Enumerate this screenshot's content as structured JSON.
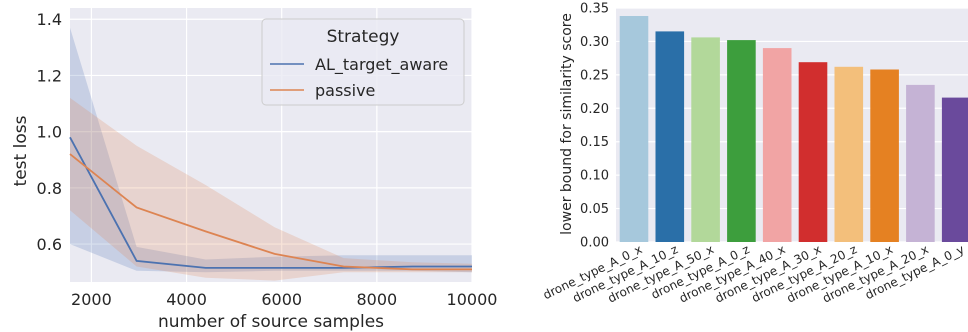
{
  "chart_data": [
    {
      "type": "line",
      "title": "",
      "xlabel": "number of source samples",
      "ylabel": "test loss",
      "xlim": [
        1550,
        10000
      ],
      "ylim": [
        0.465,
        1.44
      ],
      "xticks": [
        2000,
        4000,
        6000,
        8000,
        10000
      ],
      "yticks": [
        0.6,
        0.8,
        1.0,
        1.2,
        1.4
      ],
      "x": [
        1550,
        2950,
        4400,
        5850,
        7300,
        8750,
        10000
      ],
      "grid": true,
      "background": "#eaeaf2",
      "legend": {
        "title": "Strategy",
        "position": "upper-right"
      },
      "series": [
        {
          "name": "AL_target_aware",
          "color": "#4c72b0",
          "values": [
            0.98,
            0.54,
            0.515,
            0.515,
            0.515,
            0.52,
            0.52
          ],
          "lower": [
            0.6,
            0.505,
            0.5,
            0.505,
            0.505,
            0.505,
            0.5
          ],
          "upper": [
            1.37,
            0.59,
            0.545,
            0.555,
            0.56,
            0.56,
            0.56
          ]
        },
        {
          "name": "passive",
          "color": "#dd8452",
          "values": [
            0.92,
            0.73,
            0.645,
            0.565,
            0.52,
            0.51,
            0.51
          ],
          "lower": [
            0.72,
            0.52,
            0.48,
            0.47,
            0.5,
            0.5,
            0.5
          ],
          "upper": [
            1.12,
            0.95,
            0.81,
            0.66,
            0.55,
            0.535,
            0.53
          ]
        }
      ]
    },
    {
      "type": "bar",
      "title": "",
      "xlabel": "",
      "ylabel": "lower bound for similarity score",
      "ylim": [
        0,
        0.35
      ],
      "yticks": [
        "0.00",
        "0.05",
        "0.10",
        "0.15",
        "0.20",
        "0.25",
        "0.30",
        "0.35"
      ],
      "grid": true,
      "background": "#eaeaf2",
      "categories": [
        "drone_type_A_0_x",
        "drone_type_A_10_z",
        "drone_type_A_50_x",
        "drone_type_A_0_z",
        "drone_type_A_40_x",
        "drone_type_A_30_x",
        "drone_type_A_20_z",
        "drone_type_A_10_x",
        "drone_type_A_20_x",
        "drone_type_A_0_y"
      ],
      "values": [
        0.338,
        0.315,
        0.306,
        0.302,
        0.29,
        0.269,
        0.262,
        0.258,
        0.235,
        0.216
      ],
      "colors": [
        "#a6c8dc",
        "#2a6fa8",
        "#b2d89a",
        "#3d9e3d",
        "#f1a4a4",
        "#d12e2e",
        "#f3bf7b",
        "#e58122",
        "#c5b3d5",
        "#6a4a9c"
      ]
    }
  ]
}
